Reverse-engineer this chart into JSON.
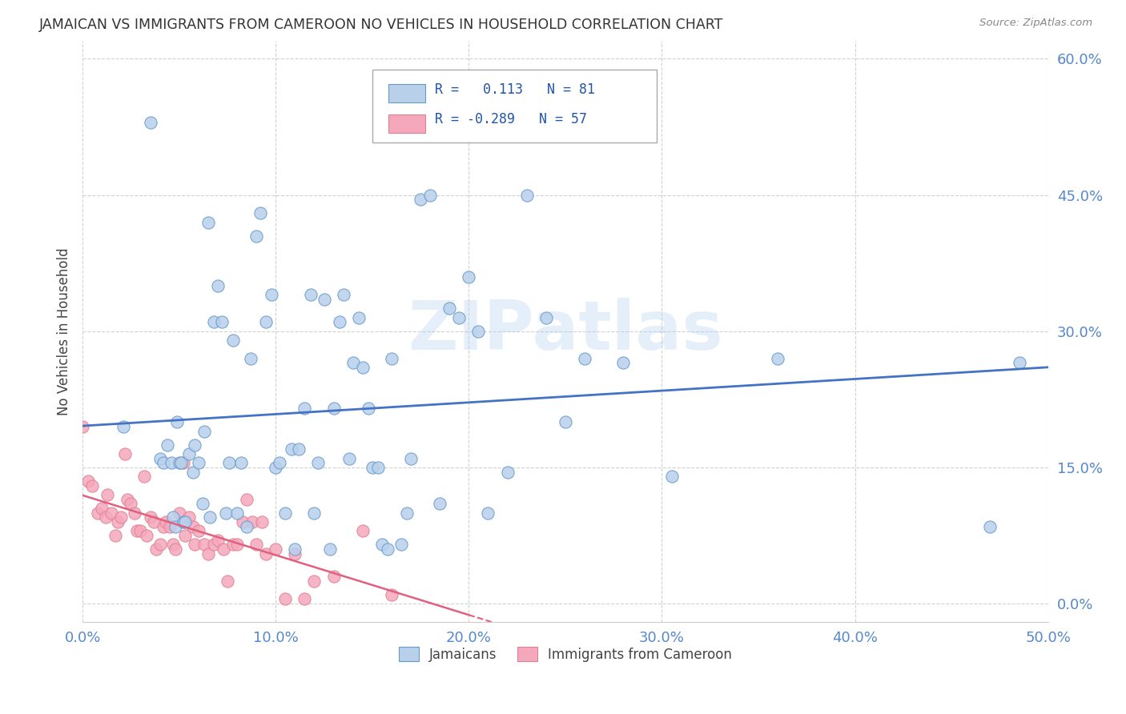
{
  "title": "JAMAICAN VS IMMIGRANTS FROM CAMEROON NO VEHICLES IN HOUSEHOLD CORRELATION CHART",
  "source": "Source: ZipAtlas.com",
  "ylabel": "No Vehicles in Household",
  "xlim": [
    0.0,
    0.5
  ],
  "ylim": [
    -0.02,
    0.62
  ],
  "xticks": [
    0.0,
    0.1,
    0.2,
    0.3,
    0.4,
    0.5
  ],
  "yticks": [
    0.0,
    0.15,
    0.3,
    0.45,
    0.6
  ],
  "xtick_labels": [
    "0.0%",
    "10.0%",
    "20.0%",
    "30.0%",
    "40.0%",
    "50.0%"
  ],
  "ytick_labels": [
    "0.0%",
    "15.0%",
    "30.0%",
    "45.0%",
    "60.0%"
  ],
  "r_jamaican": 0.113,
  "n_jamaican": 81,
  "r_cameroon": -0.289,
  "n_cameroon": 57,
  "color_jamaican_fill": "#b8d0ea",
  "color_cameroon_fill": "#f5a8bc",
  "color_jamaican_edge": "#6699cc",
  "color_cameroon_edge": "#e08090",
  "color_jamaican_line": "#4472c4",
  "color_cameroon_line": "#e06080",
  "jamaican_x": [
    0.021,
    0.035,
    0.04,
    0.042,
    0.044,
    0.046,
    0.047,
    0.048,
    0.049,
    0.05,
    0.051,
    0.052,
    0.053,
    0.055,
    0.057,
    0.058,
    0.06,
    0.062,
    0.063,
    0.065,
    0.066,
    0.068,
    0.07,
    0.072,
    0.074,
    0.076,
    0.078,
    0.08,
    0.082,
    0.085,
    0.087,
    0.09,
    0.092,
    0.095,
    0.098,
    0.1,
    0.102,
    0.105,
    0.108,
    0.11,
    0.112,
    0.115,
    0.118,
    0.12,
    0.122,
    0.125,
    0.128,
    0.13,
    0.133,
    0.135,
    0.138,
    0.14,
    0.143,
    0.145,
    0.148,
    0.15,
    0.153,
    0.155,
    0.158,
    0.16,
    0.165,
    0.168,
    0.17,
    0.175,
    0.18,
    0.185,
    0.19,
    0.195,
    0.2,
    0.205,
    0.21,
    0.22,
    0.23,
    0.24,
    0.25,
    0.26,
    0.28,
    0.305,
    0.36,
    0.47,
    0.485
  ],
  "jamaican_y": [
    0.195,
    0.53,
    0.16,
    0.155,
    0.175,
    0.155,
    0.095,
    0.085,
    0.2,
    0.155,
    0.155,
    0.09,
    0.09,
    0.165,
    0.145,
    0.175,
    0.155,
    0.11,
    0.19,
    0.42,
    0.095,
    0.31,
    0.35,
    0.31,
    0.1,
    0.155,
    0.29,
    0.1,
    0.155,
    0.085,
    0.27,
    0.405,
    0.43,
    0.31,
    0.34,
    0.15,
    0.155,
    0.1,
    0.17,
    0.06,
    0.17,
    0.215,
    0.34,
    0.1,
    0.155,
    0.335,
    0.06,
    0.215,
    0.31,
    0.34,
    0.16,
    0.265,
    0.315,
    0.26,
    0.215,
    0.15,
    0.15,
    0.065,
    0.06,
    0.27,
    0.065,
    0.1,
    0.16,
    0.445,
    0.45,
    0.11,
    0.325,
    0.315,
    0.36,
    0.3,
    0.1,
    0.145,
    0.45,
    0.315,
    0.2,
    0.27,
    0.265,
    0.14,
    0.27,
    0.085,
    0.265
  ],
  "cameroon_x": [
    0.0,
    0.003,
    0.005,
    0.008,
    0.01,
    0.012,
    0.013,
    0.015,
    0.017,
    0.018,
    0.02,
    0.022,
    0.023,
    0.025,
    0.027,
    0.028,
    0.03,
    0.032,
    0.033,
    0.035,
    0.037,
    0.038,
    0.04,
    0.042,
    0.043,
    0.045,
    0.047,
    0.048,
    0.05,
    0.052,
    0.053,
    0.055,
    0.057,
    0.058,
    0.06,
    0.063,
    0.065,
    0.068,
    0.07,
    0.073,
    0.075,
    0.078,
    0.08,
    0.083,
    0.085,
    0.088,
    0.09,
    0.093,
    0.095,
    0.1,
    0.105,
    0.11,
    0.115,
    0.12,
    0.13,
    0.145,
    0.16
  ],
  "cameroon_y": [
    0.195,
    0.135,
    0.13,
    0.1,
    0.105,
    0.095,
    0.12,
    0.1,
    0.075,
    0.09,
    0.095,
    0.165,
    0.115,
    0.11,
    0.1,
    0.08,
    0.08,
    0.14,
    0.075,
    0.095,
    0.09,
    0.06,
    0.065,
    0.085,
    0.09,
    0.085,
    0.065,
    0.06,
    0.1,
    0.155,
    0.075,
    0.095,
    0.085,
    0.065,
    0.08,
    0.065,
    0.055,
    0.065,
    0.07,
    0.06,
    0.025,
    0.065,
    0.065,
    0.09,
    0.115,
    0.09,
    0.065,
    0.09,
    0.055,
    0.06,
    0.005,
    0.055,
    0.005,
    0.025,
    0.03,
    0.08,
    0.01
  ]
}
